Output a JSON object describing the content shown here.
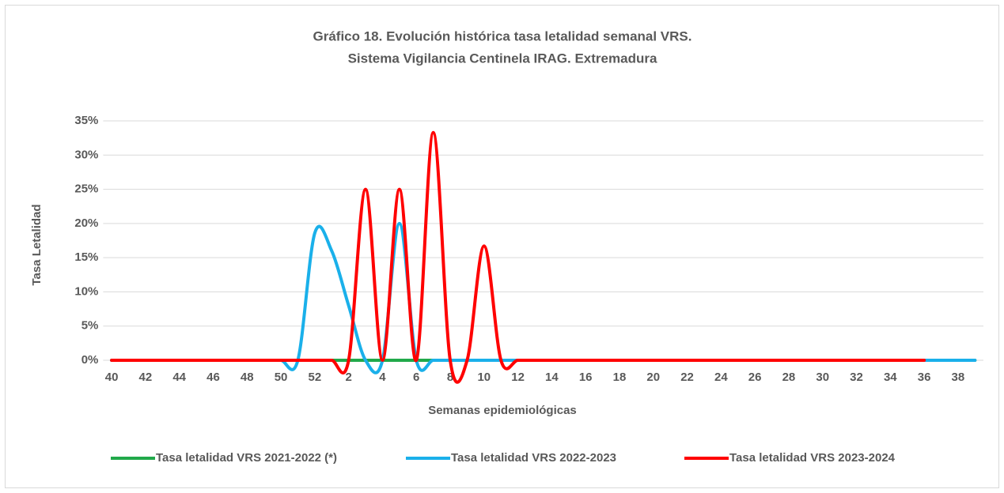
{
  "chart_data": {
    "type": "line",
    "title": [
      "Gráfico 18. Evolución histórica tasa letalidad semanal VRS.",
      "Sistema  Vigilancia Centinela IRAG. Extremadura"
    ],
    "xlabel": "Semanas epidemiológicas",
    "ylabel": "Tasa Letalidad",
    "categories": [
      "40",
      null,
      "42",
      null,
      "44",
      null,
      "46",
      null,
      "48",
      null,
      "50",
      null,
      "52",
      null,
      "2",
      null,
      "4",
      null,
      "6",
      null,
      "8",
      null,
      "10",
      null,
      "12",
      null,
      "14",
      null,
      "16",
      null,
      "18",
      null,
      "20",
      null,
      "22",
      null,
      "24",
      null,
      "26",
      null,
      "28",
      null,
      "30",
      null,
      "32",
      null,
      "34",
      null,
      "36",
      null,
      "38",
      null
    ],
    "ylim": [
      0,
      35
    ],
    "yticks": [
      {
        "value": 0,
        "label": "0%"
      },
      {
        "value": 5,
        "label": "5%"
      },
      {
        "value": 10,
        "label": "10%"
      },
      {
        "value": 15,
        "label": "15%"
      },
      {
        "value": 20,
        "label": "20%"
      },
      {
        "value": 25,
        "label": "25%"
      },
      {
        "value": 30,
        "label": "30%"
      },
      {
        "value": 35,
        "label": "35%"
      }
    ],
    "grid": true,
    "legend": "bottom",
    "smooth": true,
    "series": [
      {
        "name": "Tasa letalidad VRS 2021-2022 (*)",
        "color": "#21a94a",
        "values": [
          0,
          0,
          0,
          0,
          0,
          0,
          0,
          0,
          0,
          0,
          0,
          0,
          0,
          0,
          0,
          0,
          0,
          0,
          0,
          0,
          0,
          0,
          0,
          0,
          0,
          0,
          0,
          0,
          0,
          0,
          0,
          0,
          0,
          0,
          0,
          0,
          0,
          0,
          0,
          0,
          0,
          0,
          0,
          0,
          0,
          0,
          0,
          0,
          0,
          0,
          0,
          0
        ]
      },
      {
        "name": "Tasa letalidad VRS 2022-2023",
        "color": "#1ab0ea",
        "values": [
          0,
          0,
          0,
          0,
          0,
          0,
          0,
          0,
          0,
          0,
          0,
          0,
          18.6,
          16,
          8,
          0,
          0,
          20,
          0,
          0,
          0,
          0,
          0,
          0,
          0,
          0,
          0,
          0,
          0,
          0,
          0,
          0,
          0,
          0,
          0,
          0,
          0,
          0,
          0,
          0,
          0,
          0,
          0,
          0,
          0,
          0,
          0,
          0,
          0,
          0,
          0,
          0
        ]
      },
      {
        "name": "Tasa letalidad VRS 2023-2024",
        "color": "#ff0000",
        "values": [
          0,
          0,
          0,
          0,
          0,
          0,
          0,
          0,
          0,
          0,
          0,
          0,
          0,
          0,
          0,
          25,
          0,
          25,
          0,
          33.3,
          0,
          0,
          16.7,
          0,
          0,
          0,
          0,
          0,
          0,
          0,
          0,
          0,
          0,
          0,
          0,
          0,
          0,
          0,
          0,
          0,
          0,
          0,
          0,
          0,
          0,
          0,
          0,
          0,
          0,
          null,
          null,
          null
        ]
      }
    ]
  }
}
